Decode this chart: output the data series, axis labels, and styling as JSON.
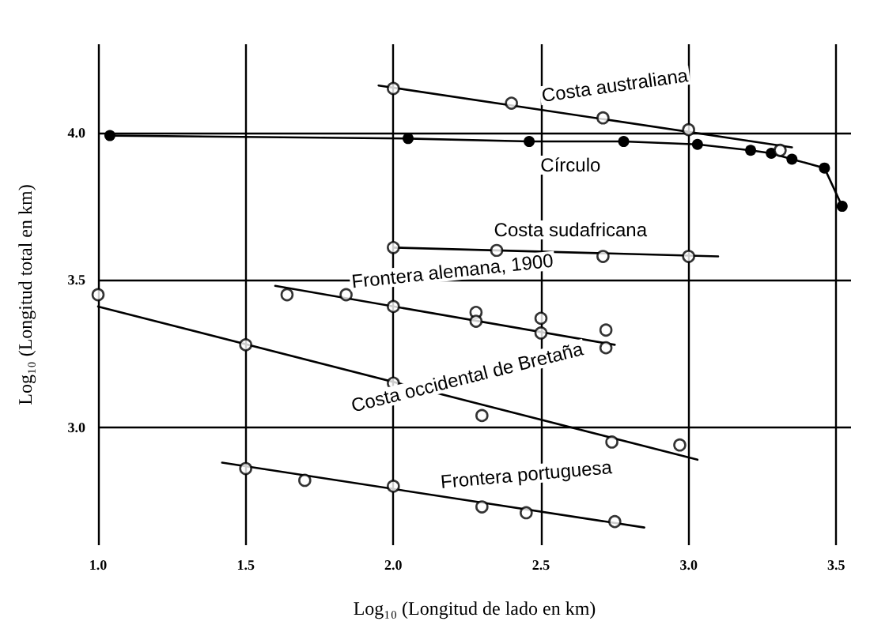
{
  "chart_data": {
    "type": "scatter",
    "xlabel": "Log₁₀ (Longitud de lado en km)",
    "ylabel": "Log₁₀ (Longitud total en km)",
    "xlim": [
      1.0,
      3.55
    ],
    "ylim": [
      2.6,
      4.3
    ],
    "xticks": [
      {
        "value": 1,
        "label": "1.0"
      },
      1.5,
      {
        "value": 2,
        "label": "2.0"
      },
      2.5,
      {
        "value": 3,
        "label": "3.0"
      },
      3.5
    ],
    "yticks": [
      {
        "value": 3,
        "label": "3.0"
      },
      3.5,
      {
        "value": 4,
        "label": "4.0"
      }
    ],
    "grid": true,
    "marker": "circle",
    "series": [
      {
        "color": "#000000",
        "x": [
          2.0,
          2.4,
          2.71,
          3.0,
          3.31
        ],
        "values": [
          4.15,
          4.1,
          4.05,
          4.01,
          3.94
        ]
      },
      {
        "type": "line",
        "color": "#000000",
        "x": [
          1.95,
          3.35
        ],
        "values": [
          4.16,
          3.95
        ],
        "marker": "none",
        "line_style": "solid"
      },
      {
        "type": "line",
        "color": "#000000",
        "x": [
          1.04,
          2.05,
          2.46,
          2.78,
          3.03,
          3.21,
          3.28,
          3.35,
          3.46,
          3.52
        ],
        "values": [
          3.99,
          3.98,
          3.97,
          3.97,
          3.96,
          3.94,
          3.93,
          3.91,
          3.88,
          3.75
        ],
        "line_style": "solid"
      },
      {
        "color": "#000000",
        "x": [
          2.0,
          2.35,
          2.71,
          3.0
        ],
        "values": [
          3.61,
          3.6,
          3.58,
          3.58
        ]
      },
      {
        "type": "line",
        "color": "#000000",
        "x": [
          2.0,
          3.1
        ],
        "values": [
          3.61,
          3.58
        ],
        "marker": "none",
        "line_style": "solid"
      },
      {
        "color": "#000000",
        "x": [
          1.64,
          1.84,
          2.0,
          2.28,
          2.28,
          2.5,
          2.5,
          2.72,
          2.72
        ],
        "values": [
          3.45,
          3.45,
          3.41,
          3.39,
          3.36,
          3.37,
          3.32,
          3.33,
          3.27
        ]
      },
      {
        "type": "line",
        "color": "#000000",
        "x": [
          1.6,
          2.75
        ],
        "values": [
          3.48,
          3.28
        ],
        "marker": "none",
        "line_style": "solid"
      },
      {
        "color": "#000000",
        "x": [
          1.0,
          1.5,
          2.0,
          2.3,
          2.74,
          2.97
        ],
        "values": [
          3.45,
          3.28,
          3.15,
          3.04,
          2.95,
          2.94
        ]
      },
      {
        "type": "line",
        "color": "#000000",
        "x": [
          1.0,
          3.03
        ],
        "values": [
          3.41,
          2.89
        ],
        "marker": "none",
        "line_style": "solid"
      },
      {
        "color": "#000000",
        "x": [
          1.5,
          1.7,
          2.0,
          2.3,
          2.45,
          2.75
        ],
        "values": [
          2.86,
          2.82,
          2.8,
          2.73,
          2.71,
          2.68
        ]
      },
      {
        "type": "line",
        "color": "#000000",
        "x": [
          1.42,
          2.85
        ],
        "values": [
          2.88,
          2.66
        ],
        "marker": "none",
        "line_style": "solid"
      }
    ],
    "annotations": [
      "Costa australiana",
      "Círculo",
      "Costa sudafricana",
      "Frontera alemana, 1900",
      "Costa occidental de Bretaña",
      "Frontera portuguesa"
    ]
  }
}
